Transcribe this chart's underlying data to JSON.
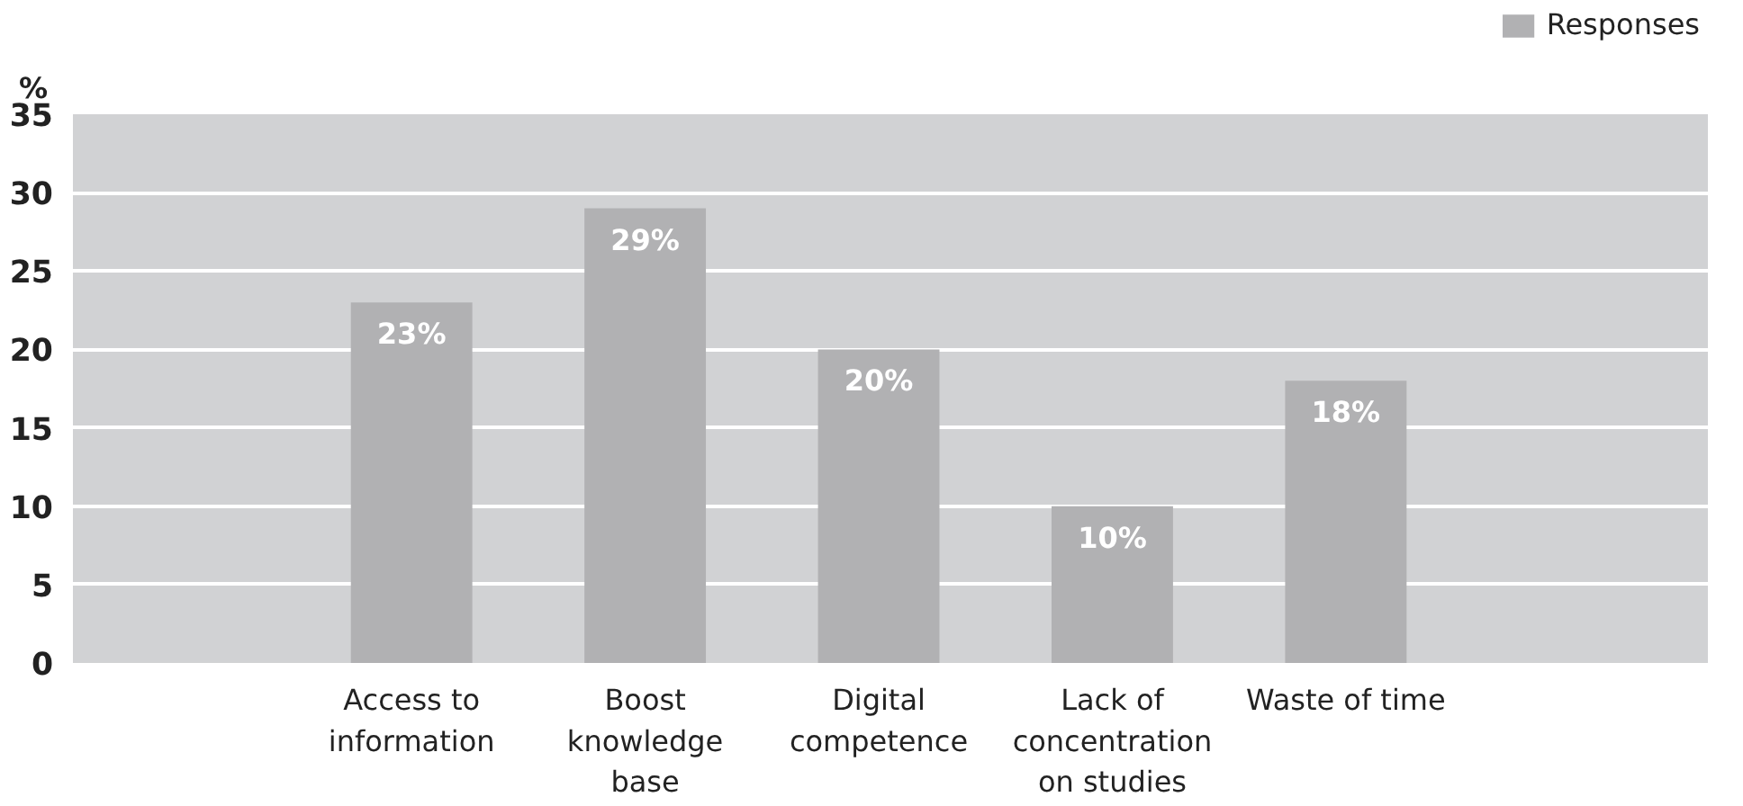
{
  "chart_data": {
    "type": "bar",
    "ylabel": "%",
    "categories": [
      "Access to information",
      "Boost knowledge base",
      "Digital competence",
      "Lack of concentration on studies",
      "Waste of time"
    ],
    "series": [
      {
        "name": "Responses",
        "color": "#b1b1b3",
        "values": [
          23,
          29,
          20,
          10,
          18
        ],
        "value_labels": [
          "23%",
          "29%",
          "20%",
          "10%",
          "18%"
        ]
      }
    ],
    "ylim": [
      0,
      35
    ],
    "yticks": [
      0,
      5,
      10,
      15,
      20,
      25,
      30,
      35
    ],
    "grid": "y",
    "legend": "top right"
  }
}
